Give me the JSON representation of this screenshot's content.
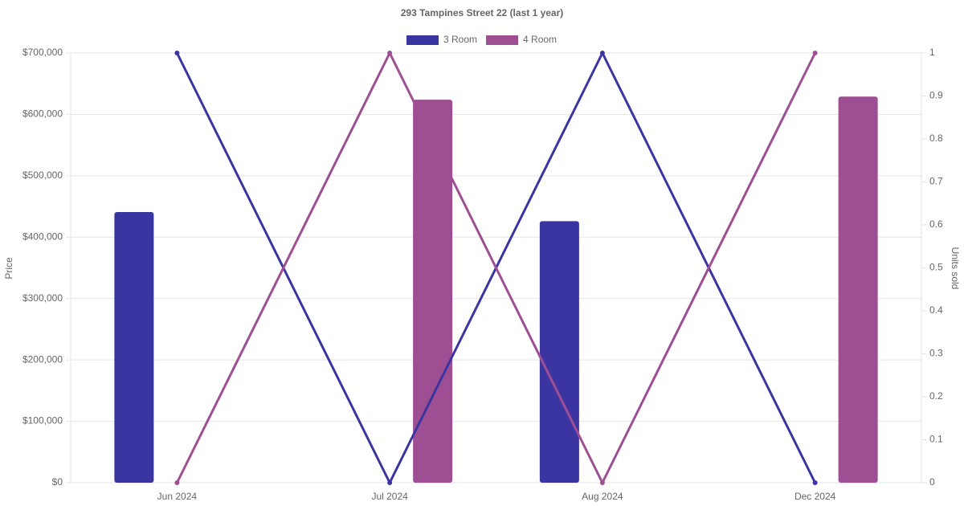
{
  "chart_data": {
    "type": "bar-line",
    "title": "293 Tampines Street 22 (last 1 year)",
    "categories": [
      "Jun 2024",
      "Jul 2024",
      "Aug 2024",
      "Dec 2024"
    ],
    "series": [
      {
        "name": "3 Room",
        "color": "#3a35a0",
        "values": [
          441000,
          null,
          426000,
          null
        ],
        "units": [
          1,
          0,
          1,
          0
        ]
      },
      {
        "name": "4 Room",
        "color": "#9e4f93",
        "values": [
          null,
          624000,
          null,
          629000
        ],
        "units": [
          0,
          1,
          0,
          1
        ]
      }
    ],
    "y_label": "Price",
    "y2_label": "Units sold",
    "ylim": [
      0,
      700000
    ],
    "yticks": [
      {
        "value": 0,
        "label": "$0"
      },
      {
        "value": 100000,
        "label": "$100,000"
      },
      {
        "value": 200000,
        "label": "$200,000"
      },
      {
        "value": 300000,
        "label": "$300,000"
      },
      {
        "value": 400000,
        "label": "$400,000"
      },
      {
        "value": 500000,
        "label": "$500,000"
      },
      {
        "value": 600000,
        "label": "$600,000"
      },
      {
        "value": 700000,
        "label": "$700,000"
      }
    ],
    "y2lim": [
      0,
      1
    ],
    "y2ticks": [
      0,
      0.1,
      0.2,
      0.3,
      0.4,
      0.5,
      0.6,
      0.7,
      0.8,
      0.9,
      1
    ],
    "grid": true
  }
}
